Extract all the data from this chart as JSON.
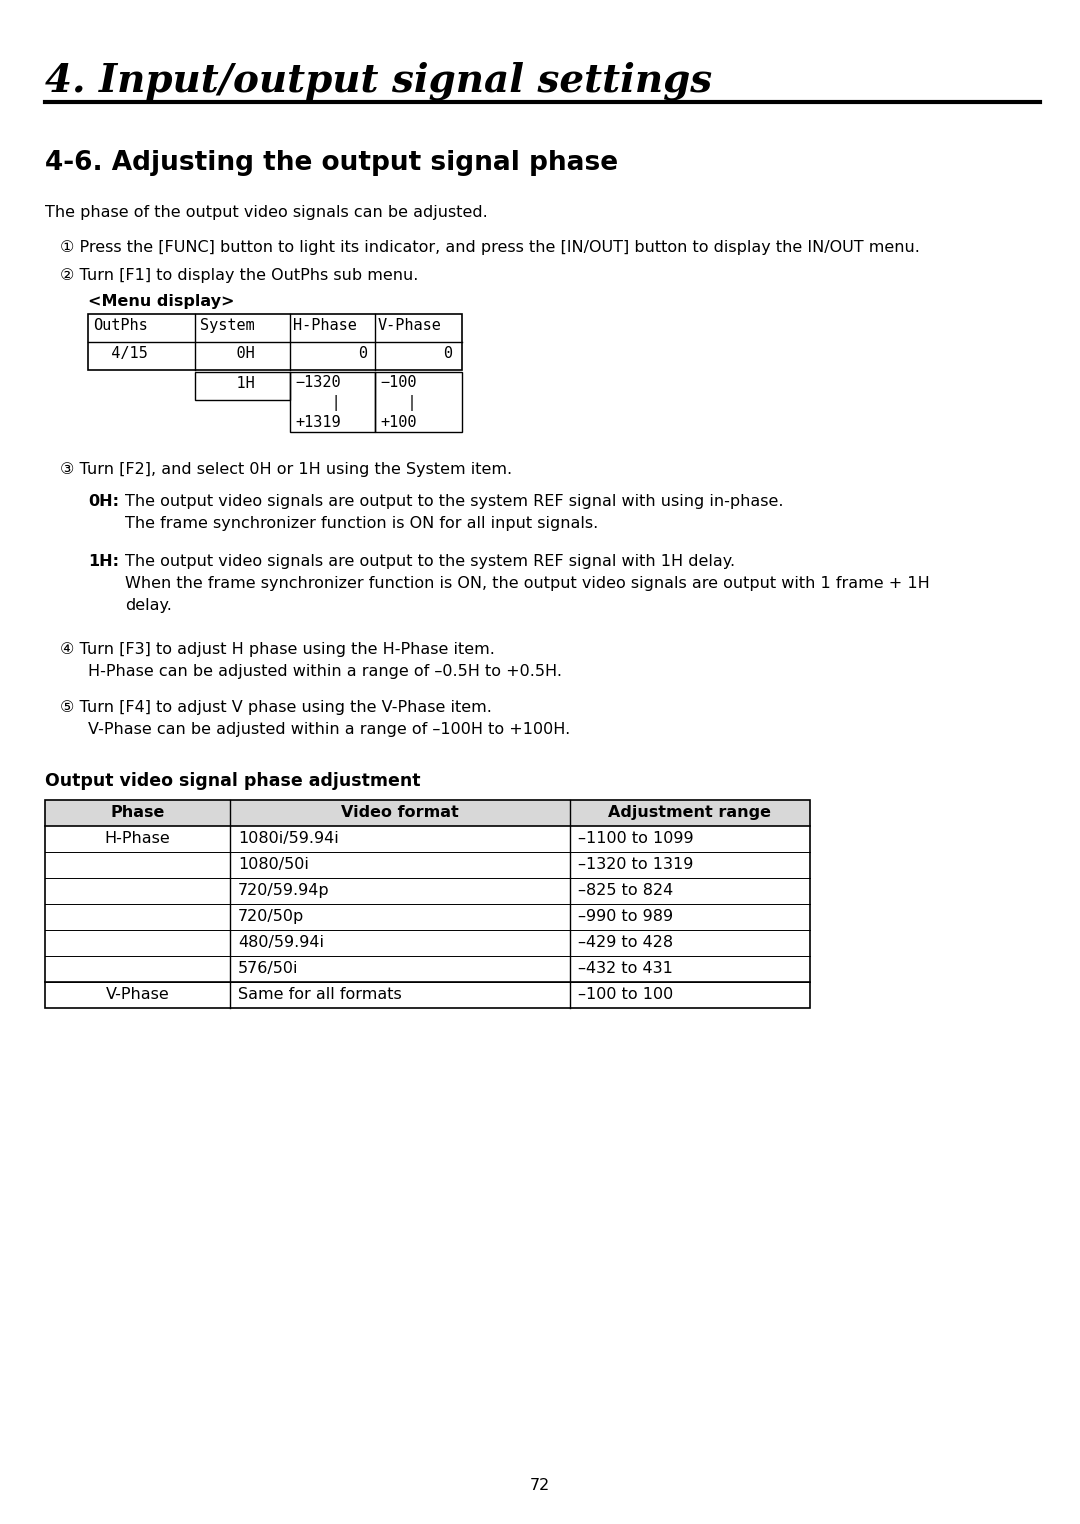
{
  "chapter_title": "4. Input/output signal settings",
  "section_title": "4-6. Adjusting the output signal phase",
  "intro_text": "The phase of the output video signals can be adjusted.",
  "step1": "① Press the [FUNC] button to light its indicator, and press the [IN/OUT] button to display the IN/OUT menu.",
  "step2": "② Turn [F1] to display the OutPhs sub menu.",
  "menu_display_label": "<Menu display>",
  "step3": "③ Turn [F2], and select 0H or 1H using the System item.",
  "oh_label": "0H:",
  "oh_text1": "The output video signals are output to the system REF signal with using in-phase.",
  "oh_text2": "The frame synchronizer function is ON for all input signals.",
  "one_h_label": "1H:",
  "one_h_text1": "The output video signals are output to the system REF signal with 1H delay.",
  "one_h_text2": "When the frame synchronizer function is ON, the output video signals are output with 1 frame + 1H",
  "one_h_text3": "delay.",
  "step4_line1": "④ Turn [F3] to adjust H phase using the H-Phase item.",
  "step4_line2": "H-Phase can be adjusted within a range of –0.5H to +0.5H.",
  "step5_line1": "⑤ Turn [F4] to adjust V phase using the V-Phase item.",
  "step5_line2": "V-Phase can be adjusted within a range of –100H to +100H.",
  "output_table_title": "Output video signal phase adjustment",
  "output_table_headers": [
    "Phase",
    "Video format",
    "Adjustment range"
  ],
  "output_table_rows": [
    [
      "H-Phase",
      "1080i/59.94i",
      "–1100 to 1099"
    ],
    [
      "",
      "1080/50i",
      "–1320 to 1319"
    ],
    [
      "",
      "720/59.94p",
      "–825 to 824"
    ],
    [
      "",
      "720/50p",
      "–990 to 989"
    ],
    [
      "",
      "480/59.94i",
      "–429 to 428"
    ],
    [
      "",
      "576/50i",
      "–432 to 431"
    ],
    [
      "V-Phase",
      "Same for all formats",
      "–100 to 100"
    ]
  ],
  "page_number": "72",
  "bg_color": "#ffffff"
}
